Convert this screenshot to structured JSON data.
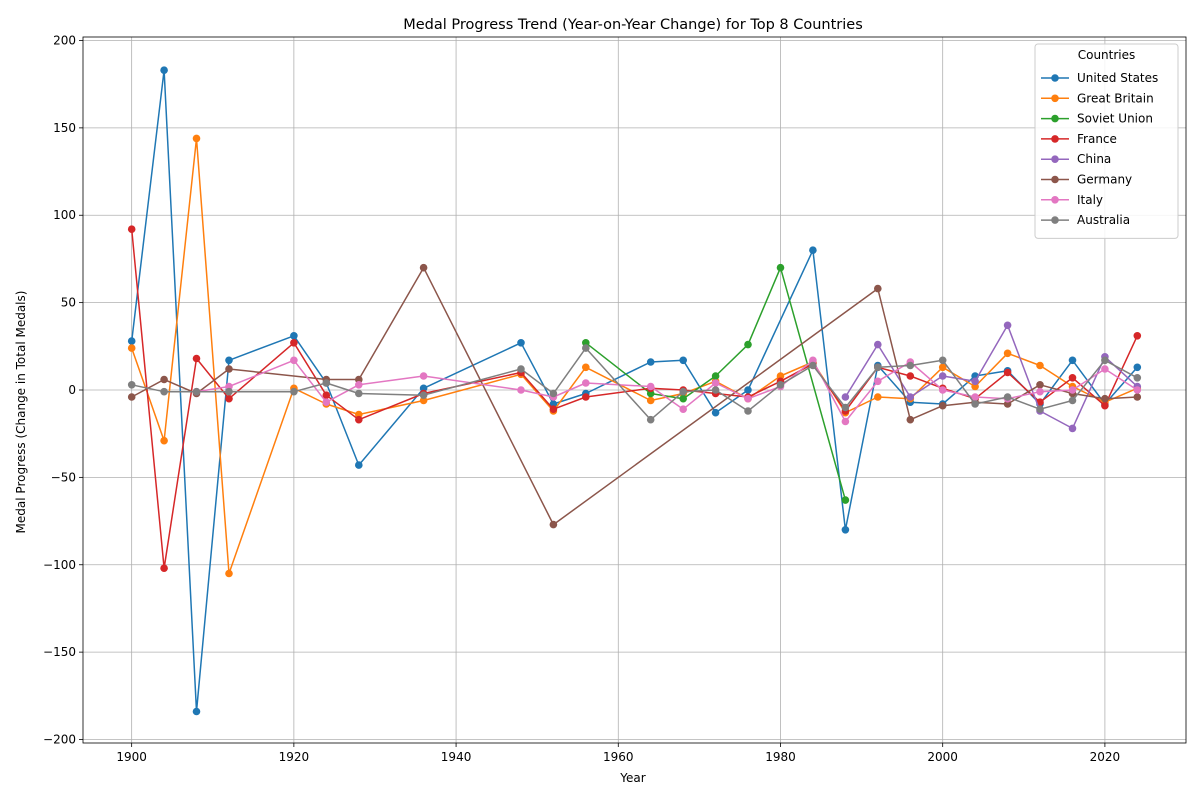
{
  "chart_data": {
    "type": "line",
    "title": "Medal Progress Trend (Year-on-Year Change) for Top 8 Countries",
    "xlabel": "Year",
    "ylabel": "Medal Progress (Change in Total Medals)",
    "xlim": [
      1894,
      2030
    ],
    "ylim": [
      -202,
      202
    ],
    "xticks": [
      1900,
      1920,
      1940,
      1960,
      1980,
      2000,
      2020
    ],
    "yticks": [
      -200,
      -150,
      -100,
      -50,
      0,
      50,
      100,
      150,
      200
    ],
    "grid": true,
    "legend_title": "Countries",
    "legend_position": "top-right",
    "series": [
      {
        "name": "United States",
        "color": "#1f77b4",
        "points": [
          [
            1900,
            28
          ],
          [
            1904,
            183
          ],
          [
            1908,
            -184
          ],
          [
            1912,
            17
          ],
          [
            1920,
            31
          ],
          [
            1924,
            4
          ],
          [
            1928,
            -43
          ],
          [
            1936,
            1
          ],
          [
            1948,
            27
          ],
          [
            1952,
            -8
          ],
          [
            1956,
            -2
          ],
          [
            1964,
            16
          ],
          [
            1968,
            17
          ],
          [
            1972,
            -13
          ],
          [
            1976,
            0
          ],
          [
            1984,
            80
          ],
          [
            1988,
            -80
          ],
          [
            1992,
            14
          ],
          [
            1996,
            -7
          ],
          [
            2000,
            -8
          ],
          [
            2004,
            8
          ],
          [
            2008,
            11
          ],
          [
            2012,
            -8
          ],
          [
            2016,
            17
          ],
          [
            2020,
            -8
          ],
          [
            2024,
            13
          ]
        ]
      },
      {
        "name": "Great Britain",
        "color": "#ff7f0e",
        "points": [
          [
            1900,
            24
          ],
          [
            1904,
            -29
          ],
          [
            1908,
            144
          ],
          [
            1912,
            -105
          ],
          [
            1920,
            1
          ],
          [
            1924,
            -8
          ],
          [
            1928,
            -14
          ],
          [
            1936,
            -6
          ],
          [
            1948,
            9
          ],
          [
            1952,
            -12
          ],
          [
            1956,
            13
          ],
          [
            1964,
            -6
          ],
          [
            1968,
            -2
          ],
          [
            1972,
            5
          ],
          [
            1976,
            -5
          ],
          [
            1980,
            8
          ],
          [
            1984,
            16
          ],
          [
            1988,
            -13
          ],
          [
            1992,
            -4
          ],
          [
            1996,
            -5
          ],
          [
            2000,
            13
          ],
          [
            2004,
            2
          ],
          [
            2008,
            21
          ],
          [
            2012,
            14
          ],
          [
            2016,
            2
          ],
          [
            2020,
            -7
          ],
          [
            2024,
            1
          ]
        ]
      },
      {
        "name": "Soviet Union",
        "color": "#2ca02c",
        "points": [
          [
            1956,
            27
          ],
          [
            1964,
            -2
          ],
          [
            1968,
            -5
          ],
          [
            1972,
            8
          ],
          [
            1976,
            26
          ],
          [
            1980,
            70
          ],
          [
            1988,
            -63
          ]
        ]
      },
      {
        "name": "France",
        "color": "#d62728",
        "points": [
          [
            1900,
            92
          ],
          [
            1904,
            -102
          ],
          [
            1908,
            18
          ],
          [
            1912,
            -5
          ],
          [
            1920,
            27
          ],
          [
            1924,
            -3
          ],
          [
            1928,
            -17
          ],
          [
            1936,
            -2
          ],
          [
            1948,
            10
          ],
          [
            1952,
            -11
          ],
          [
            1956,
            -4
          ],
          [
            1964,
            1
          ],
          [
            1968,
            0
          ],
          [
            1972,
            -2
          ],
          [
            1976,
            -4
          ],
          [
            1980,
            5
          ],
          [
            1984,
            15
          ],
          [
            1988,
            -12
          ],
          [
            1992,
            13
          ],
          [
            1996,
            8
          ],
          [
            2000,
            1
          ],
          [
            2004,
            -5
          ],
          [
            2008,
            10
          ],
          [
            2012,
            -7
          ],
          [
            2016,
            7
          ],
          [
            2020,
            -9
          ],
          [
            2024,
            31
          ]
        ]
      },
      {
        "name": "China",
        "color": "#9467bd",
        "points": [
          [
            1988,
            -4
          ],
          [
            1992,
            26
          ],
          [
            1996,
            -4
          ],
          [
            2000,
            8
          ],
          [
            2004,
            5
          ],
          [
            2008,
            37
          ],
          [
            2012,
            -12
          ],
          [
            2016,
            -22
          ],
          [
            2020,
            19
          ],
          [
            2024,
            2
          ]
        ]
      },
      {
        "name": "Germany",
        "color": "#8c564b",
        "points": [
          [
            1900,
            -4
          ],
          [
            1904,
            6
          ],
          [
            1908,
            -2
          ],
          [
            1912,
            12
          ],
          [
            1924,
            6
          ],
          [
            1928,
            6
          ],
          [
            1936,
            70
          ],
          [
            1952,
            -77
          ],
          [
            1992,
            58
          ],
          [
            1996,
            -17
          ],
          [
            2000,
            -9
          ],
          [
            2004,
            -7
          ],
          [
            2008,
            -8
          ],
          [
            2012,
            3
          ],
          [
            2016,
            -2
          ],
          [
            2020,
            -5
          ],
          [
            2024,
            -4
          ]
        ]
      },
      {
        "name": "Italy",
        "color": "#e377c2",
        "points": [
          [
            1908,
            -1
          ],
          [
            1912,
            2
          ],
          [
            1920,
            17
          ],
          [
            1924,
            -7
          ],
          [
            1928,
            3
          ],
          [
            1936,
            8
          ],
          [
            1948,
            0
          ],
          [
            1952,
            -4
          ],
          [
            1956,
            4
          ],
          [
            1964,
            2
          ],
          [
            1968,
            -11
          ],
          [
            1972,
            4
          ],
          [
            1976,
            -5
          ],
          [
            1980,
            2
          ],
          [
            1984,
            17
          ],
          [
            1988,
            -18
          ],
          [
            1992,
            5
          ],
          [
            1996,
            16
          ],
          [
            2000,
            0
          ],
          [
            2004,
            -4
          ],
          [
            2008,
            -5
          ],
          [
            2012,
            -1
          ],
          [
            2016,
            0
          ],
          [
            2020,
            12
          ],
          [
            2024,
            0
          ]
        ]
      },
      {
        "name": "Australia",
        "color": "#7f7f7f",
        "points": [
          [
            1900,
            3
          ],
          [
            1904,
            -1
          ],
          [
            1908,
            -1
          ],
          [
            1912,
            -1
          ],
          [
            1920,
            -1
          ],
          [
            1924,
            4
          ],
          [
            1928,
            -2
          ],
          [
            1936,
            -3
          ],
          [
            1948,
            12
          ],
          [
            1952,
            -2
          ],
          [
            1956,
            24
          ],
          [
            1964,
            -17
          ],
          [
            1968,
            -1
          ],
          [
            1972,
            0
          ],
          [
            1976,
            -12
          ],
          [
            1980,
            3
          ],
          [
            1984,
            14
          ],
          [
            1988,
            -10
          ],
          [
            1992,
            13
          ],
          [
            1996,
            14
          ],
          [
            2000,
            17
          ],
          [
            2004,
            -8
          ],
          [
            2008,
            -4
          ],
          [
            2012,
            -11
          ],
          [
            2016,
            -6
          ],
          [
            2020,
            17
          ],
          [
            2024,
            7
          ]
        ]
      }
    ]
  }
}
